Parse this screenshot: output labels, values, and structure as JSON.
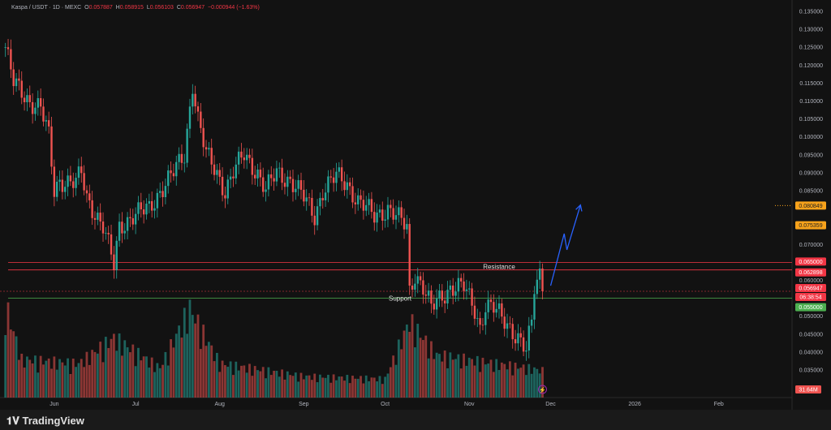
{
  "legend": {
    "symbol": "Kaspa / USDT · 1D · MEXC",
    "o_label": "O",
    "o": "0.057887",
    "h_label": "H",
    "h": "0.058915",
    "l_label": "L",
    "l": "0.056103",
    "c_label": "C",
    "c": "0.056947",
    "change": "−0.000944 (−1.63%)"
  },
  "colors": {
    "up": "#26a69a",
    "down": "#ef5350",
    "resistance": "#f23645",
    "support": "#4caf50",
    "arrow": "#2962ff",
    "orange": "#f7a21b",
    "bg": "#121212"
  },
  "chart_data": {
    "type": "candlestick",
    "ylim": [
      0.03,
      0.137
    ],
    "y_ticks": [
      "0.135000",
      "0.130000",
      "0.125000",
      "0.120000",
      "0.115000",
      "0.110000",
      "0.105000",
      "0.100000",
      "0.095000",
      "0.090000",
      "0.085000",
      "0.070000",
      "0.060000",
      "0.050000",
      "0.045000",
      "0.040000",
      "0.035000"
    ],
    "x_ticks": [
      "Jun",
      "Jul",
      "Aug",
      "Sep",
      "Oct",
      "Nov",
      "Dec",
      "2026",
      "Feb"
    ],
    "x_tick_dates": [
      "2025-06-01",
      "2025-07-01",
      "2025-08-01",
      "2025-09-01",
      "2025-10-01",
      "2025-11-01",
      "2025-12-01",
      "2026-01-01",
      "2026-02-01"
    ],
    "xlim": [
      "2025-05-12",
      "2026-02-28"
    ],
    "close_path": [
      [
        "2025-05-14",
        0.125
      ],
      [
        "2025-05-17",
        0.115
      ],
      [
        "2025-05-23",
        0.11
      ],
      [
        "2025-05-27",
        0.108
      ],
      [
        "2025-05-30",
        0.1
      ],
      [
        "2025-06-01",
        0.085
      ],
      [
        "2025-06-03",
        0.088
      ],
      [
        "2025-06-09",
        0.087
      ],
      [
        "2025-06-11",
        0.09
      ],
      [
        "2025-06-13",
        0.083
      ],
      [
        "2025-06-19",
        0.075
      ],
      [
        "2025-06-23",
        0.064
      ],
      [
        "2025-06-25",
        0.075
      ],
      [
        "2025-06-30",
        0.078
      ],
      [
        "2025-07-06",
        0.08
      ],
      [
        "2025-07-10",
        0.085
      ],
      [
        "2025-07-15",
        0.09
      ],
      [
        "2025-07-19",
        0.095
      ],
      [
        "2025-07-22",
        0.115
      ],
      [
        "2025-07-24",
        0.105
      ],
      [
        "2025-07-27",
        0.095
      ],
      [
        "2025-07-31",
        0.09
      ],
      [
        "2025-08-03",
        0.085
      ],
      [
        "2025-08-06",
        0.09
      ],
      [
        "2025-08-10",
        0.095
      ],
      [
        "2025-08-15",
        0.09
      ],
      [
        "2025-08-18",
        0.085
      ],
      [
        "2025-08-22",
        0.09
      ],
      [
        "2025-08-27",
        0.088
      ],
      [
        "2025-09-01",
        0.083
      ],
      [
        "2025-09-05",
        0.078
      ],
      [
        "2025-09-08",
        0.085
      ],
      [
        "2025-09-13",
        0.089
      ],
      [
        "2025-09-17",
        0.087
      ],
      [
        "2025-09-21",
        0.082
      ],
      [
        "2025-09-27",
        0.078
      ],
      [
        "2025-10-02",
        0.08
      ],
      [
        "2025-10-06",
        0.077
      ],
      [
        "2025-10-09",
        0.075
      ],
      [
        "2025-10-10",
        0.057
      ],
      [
        "2025-10-12",
        0.062
      ],
      [
        "2025-10-15",
        0.058
      ],
      [
        "2025-10-18",
        0.052
      ],
      [
        "2025-10-21",
        0.055
      ],
      [
        "2025-10-25",
        0.058
      ],
      [
        "2025-10-30",
        0.058
      ],
      [
        "2025-11-03",
        0.052
      ],
      [
        "2025-11-05",
        0.047
      ],
      [
        "2025-11-07",
        0.053
      ],
      [
        "2025-11-10",
        0.052
      ],
      [
        "2025-11-15",
        0.048
      ],
      [
        "2025-11-19",
        0.044
      ],
      [
        "2025-11-22",
        0.04
      ],
      [
        "2025-11-24",
        0.048
      ],
      [
        "2025-11-25",
        0.058
      ],
      [
        "2025-11-27",
        0.062
      ],
      [
        "2025-11-28",
        0.05695
      ]
    ],
    "volume_path_m": [
      [
        "2025-05-14",
        110
      ],
      [
        "2025-05-20",
        45
      ],
      [
        "2025-06-10",
        40
      ],
      [
        "2025-06-23",
        70
      ],
      [
        "2025-07-10",
        35
      ],
      [
        "2025-07-21",
        105
      ],
      [
        "2025-08-01",
        40
      ],
      [
        "2025-09-01",
        25
      ],
      [
        "2025-10-01",
        22
      ],
      [
        "2025-10-10",
        90
      ],
      [
        "2025-10-20",
        50
      ],
      [
        "2025-11-10",
        40
      ],
      [
        "2025-11-22",
        35
      ],
      [
        "2025-11-28",
        31.64
      ]
    ],
    "current_volume": "31.64M",
    "price_labels": {
      "alert1": "0.080849",
      "alert2": "0.075359",
      "resistance_high": "0.065000",
      "resistance_low": "0.062898",
      "last": "0.056947",
      "countdown": "06:38:54",
      "support": "0.055000"
    },
    "levels": {
      "resistance_high": 0.065,
      "resistance_low": 0.062898,
      "support": 0.055,
      "last": 0.056947,
      "alert1": 0.080849,
      "alert2": 0.075359
    },
    "annotations": {
      "resistance": "Resistance",
      "support": "Support"
    },
    "arrow_path": [
      [
        "2025-12-01",
        0.0585
      ],
      [
        "2025-12-06",
        0.073
      ],
      [
        "2025-12-07",
        0.0685
      ],
      [
        "2025-12-12",
        0.081
      ]
    ]
  },
  "footer": {
    "brand": "TradingView"
  }
}
